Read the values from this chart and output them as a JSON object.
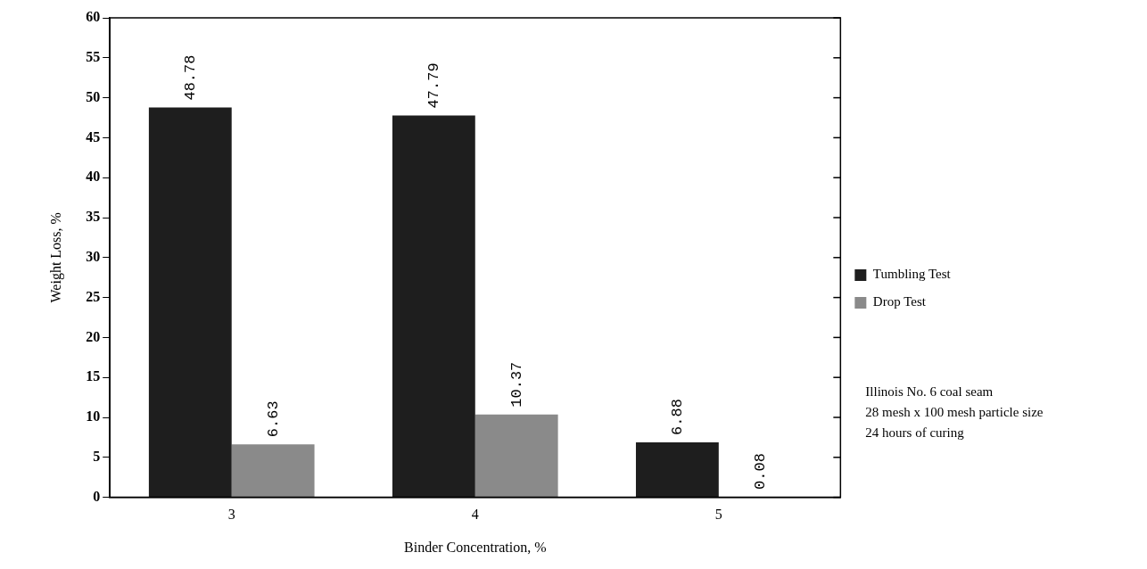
{
  "chart_data": {
    "type": "bar",
    "xlabel": "Binder Concentration, %",
    "ylabel": "Weight Loss, %",
    "categories": [
      "3",
      "4",
      "5"
    ],
    "series": [
      {
        "name": "Tumbling Test",
        "color": "#1e1e1e",
        "values": [
          48.78,
          47.79,
          6.88
        ]
      },
      {
        "name": "Drop Test",
        "color": "#8a8a8a",
        "values": [
          6.63,
          10.37,
          0.08
        ]
      }
    ],
    "ylim": [
      0,
      60
    ],
    "yticks": [
      0,
      5,
      10,
      15,
      20,
      25,
      30,
      35,
      40,
      45,
      50,
      55,
      60
    ],
    "grid": false,
    "legend": "right",
    "data_labels": true,
    "annotations": [
      "Illinois No. 6 coal seam",
      "28 mesh x 100 mesh particle size",
      "24 hours of curing"
    ]
  }
}
